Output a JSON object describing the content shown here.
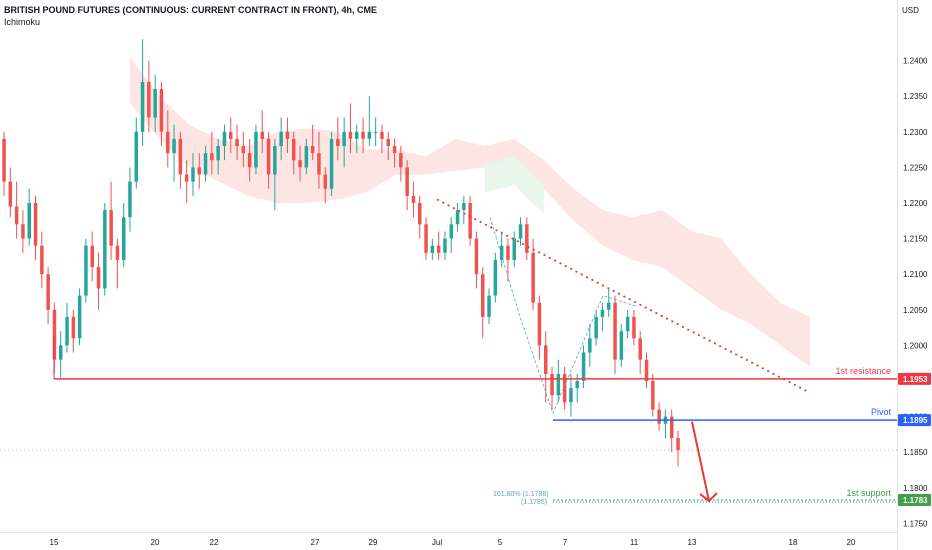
{
  "header": {
    "title": "BRITISH POUND FUTURES (CONTINUOUS: CURRENT CONTRACT IN FRONT), 4h, CME",
    "indicator": "Ichimoku",
    "currency": "USD"
  },
  "colors": {
    "up": "#26a69a",
    "down": "#ef5350",
    "resistance": "#f23645",
    "pivot": "#2962ff",
    "support": "#43a047",
    "cloud_bear": "#fde0de",
    "cloud_bull": "#e8f5e9",
    "trend": "#e53935"
  },
  "levels": {
    "resistance": {
      "label": "1st resistance",
      "price_label": "1.1953"
    },
    "pivot": {
      "label": "Pivot",
      "price_label": "1.1895"
    },
    "support": {
      "label": "1st support",
      "price_label": "1.1783"
    },
    "fib_1": "161.80% (1.1788)",
    "fib_2": "(1.1785)"
  },
  "chart_data": {
    "type": "candlestick",
    "timeframe": "4h",
    "yticks": [
      "1.2400",
      "1.2350",
      "1.2300",
      "1.2250",
      "1.2200",
      "1.2150",
      "1.2100",
      "1.2050",
      "1.2000",
      "1.1950",
      "1.1900",
      "1.1850",
      "1.1800",
      "1.1750"
    ],
    "ylim": [
      1.1738,
      1.2485
    ],
    "xticks": [
      "15",
      "20",
      "22",
      "27",
      "29",
      "Jul",
      "5",
      "7",
      "11",
      "13",
      "18",
      "20"
    ],
    "levels": {
      "resistance": 1.1953,
      "pivot": 1.1895,
      "support": 1.1783,
      "current": 1.1853
    },
    "series_ohlc": [
      [
        1.229,
        1.23,
        1.221,
        1.223
      ],
      [
        1.223,
        1.225,
        1.218,
        1.2195
      ],
      [
        1.2195,
        1.223,
        1.215,
        1.217
      ],
      [
        1.217,
        1.219,
        1.213,
        1.215
      ],
      [
        1.215,
        1.222,
        1.214,
        1.22
      ],
      [
        1.22,
        1.221,
        1.212,
        1.214
      ],
      [
        1.214,
        1.216,
        1.208,
        1.21
      ],
      [
        1.21,
        1.211,
        1.203,
        1.205
      ],
      [
        1.205,
        1.206,
        1.196,
        1.198
      ],
      [
        1.198,
        1.202,
        1.1955,
        1.2
      ],
      [
        1.2,
        1.206,
        1.199,
        1.204
      ],
      [
        1.204,
        1.205,
        1.199,
        1.201
      ],
      [
        1.201,
        1.208,
        1.2,
        1.207
      ],
      [
        1.207,
        1.215,
        1.206,
        1.214
      ],
      [
        1.214,
        1.216,
        1.209,
        1.211
      ],
      [
        1.211,
        1.213,
        1.205,
        1.208
      ],
      [
        1.208,
        1.22,
        1.207,
        1.219
      ],
      [
        1.219,
        1.223,
        1.212,
        1.214
      ],
      [
        1.214,
        1.215,
        1.208,
        1.212
      ],
      [
        1.212,
        1.22,
        1.211,
        1.218
      ],
      [
        1.218,
        1.225,
        1.216,
        1.223
      ],
      [
        1.223,
        1.232,
        1.222,
        1.23
      ],
      [
        1.23,
        1.243,
        1.228,
        1.237
      ],
      [
        1.237,
        1.24,
        1.23,
        1.232
      ],
      [
        1.232,
        1.238,
        1.23,
        1.236
      ],
      [
        1.236,
        1.237,
        1.228,
        1.23
      ],
      [
        1.23,
        1.233,
        1.225,
        1.227
      ],
      [
        1.227,
        1.231,
        1.223,
        1.229
      ],
      [
        1.229,
        1.23,
        1.222,
        1.224
      ],
      [
        1.224,
        1.226,
        1.22,
        1.223
      ],
      [
        1.223,
        1.227,
        1.221,
        1.225
      ],
      [
        1.225,
        1.227,
        1.222,
        1.224
      ],
      [
        1.224,
        1.228,
        1.223,
        1.227
      ],
      [
        1.227,
        1.23,
        1.224,
        1.226
      ],
      [
        1.226,
        1.229,
        1.224,
        1.228
      ],
      [
        1.228,
        1.231,
        1.226,
        1.23
      ],
      [
        1.23,
        1.232,
        1.227,
        1.229
      ],
      [
        1.229,
        1.231,
        1.226,
        1.228
      ],
      [
        1.228,
        1.23,
        1.225,
        1.227
      ],
      [
        1.227,
        1.229,
        1.223,
        1.225
      ],
      [
        1.225,
        1.231,
        1.224,
        1.23
      ],
      [
        1.23,
        1.233,
        1.227,
        1.229
      ],
      [
        1.229,
        1.23,
        1.222,
        1.224
      ],
      [
        1.224,
        1.229,
        1.219,
        1.228
      ],
      [
        1.228,
        1.232,
        1.226,
        1.23
      ],
      [
        1.23,
        1.232,
        1.227,
        1.229
      ],
      [
        1.229,
        1.23,
        1.224,
        1.226
      ],
      [
        1.226,
        1.228,
        1.223,
        1.225
      ],
      [
        1.225,
        1.229,
        1.224,
        1.228
      ],
      [
        1.228,
        1.231,
        1.226,
        1.227
      ],
      [
        1.227,
        1.23,
        1.222,
        1.224
      ],
      [
        1.224,
        1.225,
        1.22,
        1.222
      ],
      [
        1.222,
        1.23,
        1.221,
        1.229
      ],
      [
        1.229,
        1.232,
        1.226,
        1.228
      ],
      [
        1.228,
        1.232,
        1.225,
        1.23
      ],
      [
        1.23,
        1.234,
        1.227,
        1.229
      ],
      [
        1.229,
        1.231,
        1.227,
        1.23
      ],
      [
        1.23,
        1.232,
        1.227,
        1.229
      ],
      [
        1.229,
        1.235,
        1.228,
        1.23
      ],
      [
        1.23,
        1.232,
        1.228,
        1.23
      ],
      [
        1.23,
        1.231,
        1.227,
        1.229
      ],
      [
        1.229,
        1.23,
        1.226,
        1.228
      ],
      [
        1.228,
        1.229,
        1.225,
        1.227
      ],
      [
        1.227,
        1.228,
        1.223,
        1.225
      ],
      [
        1.225,
        1.226,
        1.219,
        1.221
      ],
      [
        1.221,
        1.223,
        1.218,
        1.22
      ],
      [
        1.22,
        1.221,
        1.215,
        1.217
      ],
      [
        1.217,
        1.218,
        1.212,
        1.213
      ],
      [
        1.213,
        1.215,
        1.212,
        1.214
      ],
      [
        1.214,
        1.216,
        1.212,
        1.213
      ],
      [
        1.213,
        1.216,
        1.212,
        1.215
      ],
      [
        1.215,
        1.218,
        1.213,
        1.217
      ],
      [
        1.217,
        1.22,
        1.216,
        1.219
      ],
      [
        1.219,
        1.221,
        1.217,
        1.22
      ],
      [
        1.22,
        1.221,
        1.214,
        1.215
      ],
      [
        1.215,
        1.216,
        1.208,
        1.21
      ],
      [
        1.21,
        1.211,
        1.201,
        1.204
      ],
      [
        1.204,
        1.208,
        1.203,
        1.207
      ],
      [
        1.207,
        1.213,
        1.206,
        1.212
      ],
      [
        1.212,
        1.216,
        1.211,
        1.214
      ],
      [
        1.214,
        1.215,
        1.209,
        1.212
      ],
      [
        1.212,
        1.216,
        1.211,
        1.215
      ],
      [
        1.215,
        1.218,
        1.214,
        1.217
      ],
      [
        1.217,
        1.218,
        1.212,
        1.213
      ],
      [
        1.213,
        1.215,
        1.205,
        1.206
      ],
      [
        1.206,
        1.207,
        1.198,
        1.2
      ],
      [
        1.2,
        1.202,
        1.192,
        1.196
      ],
      [
        1.196,
        1.197,
        1.191,
        1.193
      ],
      [
        1.193,
        1.198,
        1.192,
        1.196
      ],
      [
        1.196,
        1.197,
        1.191,
        1.192
      ],
      [
        1.192,
        1.196,
        1.19,
        1.194
      ],
      [
        1.194,
        1.196,
        1.192,
        1.195
      ],
      [
        1.195,
        1.2,
        1.194,
        1.199
      ],
      [
        1.199,
        1.203,
        1.197,
        1.201
      ],
      [
        1.201,
        1.205,
        1.2,
        1.204
      ],
      [
        1.204,
        1.206,
        1.202,
        1.205
      ],
      [
        1.205,
        1.208,
        1.204,
        1.206
      ],
      [
        1.206,
        1.207,
        1.196,
        1.198
      ],
      [
        1.198,
        1.203,
        1.197,
        1.202
      ],
      [
        1.202,
        1.205,
        1.201,
        1.204
      ],
      [
        1.204,
        1.205,
        1.2,
        1.201
      ],
      [
        1.201,
        1.202,
        1.196,
        1.198
      ],
      [
        1.198,
        1.199,
        1.194,
        1.195
      ],
      [
        1.195,
        1.196,
        1.19,
        1.191
      ],
      [
        1.191,
        1.192,
        1.188,
        1.189
      ],
      [
        1.189,
        1.191,
        1.187,
        1.19
      ],
      [
        1.19,
        1.191,
        1.185,
        1.187
      ],
      [
        1.187,
        1.188,
        1.183,
        1.1853
      ]
    ],
    "cloud": [
      [
        1.2405,
        1.234
      ],
      [
        1.235,
        1.229
      ],
      [
        1.231,
        1.225
      ],
      [
        1.229,
        1.223
      ],
      [
        1.228,
        1.221
      ],
      [
        1.23,
        1.22
      ],
      [
        1.2305,
        1.22
      ],
      [
        1.23,
        1.2205
      ],
      [
        1.2275,
        1.2215
      ],
      [
        1.2275,
        1.224
      ],
      [
        1.2265,
        1.224
      ],
      [
        1.229,
        1.2245
      ],
      [
        1.228,
        1.225
      ],
      [
        1.229,
        1.226
      ],
      [
        1.226,
        1.222
      ],
      [
        1.222,
        1.2175
      ],
      [
        1.219,
        1.214
      ],
      [
        1.218,
        1.212
      ],
      [
        1.219,
        1.211
      ],
      [
        1.216,
        1.208
      ],
      [
        1.215,
        1.205
      ],
      [
        1.21,
        1.203
      ],
      [
        1.206,
        1.2
      ],
      [
        1.204,
        1.197
      ]
    ]
  }
}
